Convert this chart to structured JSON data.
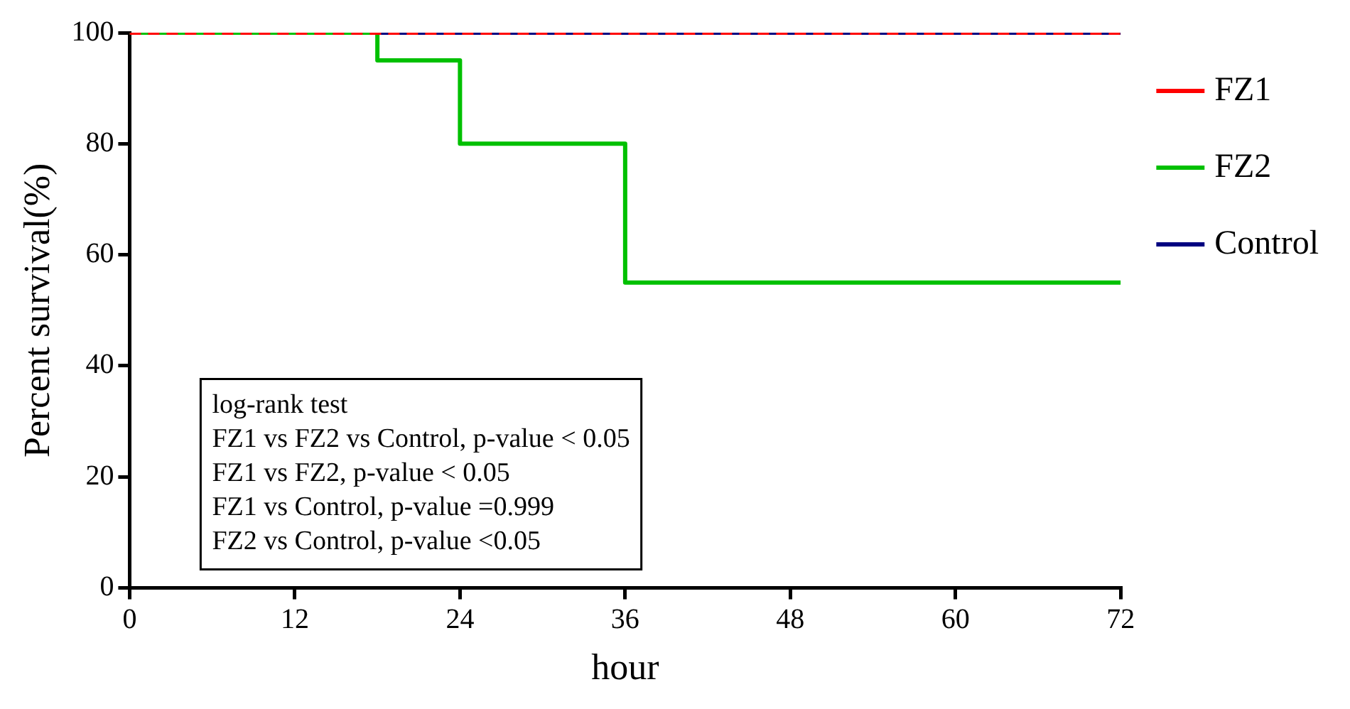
{
  "chart_data": {
    "type": "step",
    "xlabel": "hour",
    "ylabel": "Percent survival(%)",
    "xlim": [
      0,
      72
    ],
    "xticks": [
      0,
      12,
      24,
      36,
      48,
      60,
      72
    ],
    "ylim": [
      0,
      100
    ],
    "yticks": [
      0,
      20,
      40,
      60,
      80,
      100
    ],
    "grid": false,
    "legend": "right",
    "marker": "none",
    "series": [
      {
        "name": "FZ1",
        "color": "#ff0000",
        "line_style": "dashed",
        "x": [
          0,
          72
        ],
        "values": [
          100,
          100
        ]
      },
      {
        "name": "FZ2",
        "color": "#00c000",
        "line_style": "solid",
        "x": [
          0,
          18,
          24,
          36,
          72
        ],
        "values": [
          100,
          95,
          80,
          55,
          55
        ]
      },
      {
        "name": "Control",
        "color": "#000080",
        "line_style": "solid",
        "x": [
          0,
          72
        ],
        "values": [
          100,
          100
        ]
      }
    ],
    "annotations": [
      "log-rank test",
      "FZ1 vs FZ2 vs Control, p-value < 0.05",
      "FZ1 vs FZ2, p-value < 0.05",
      "FZ1 vs Control, p-value =0.999",
      "FZ2 vs Control, p-value <0.05"
    ]
  }
}
